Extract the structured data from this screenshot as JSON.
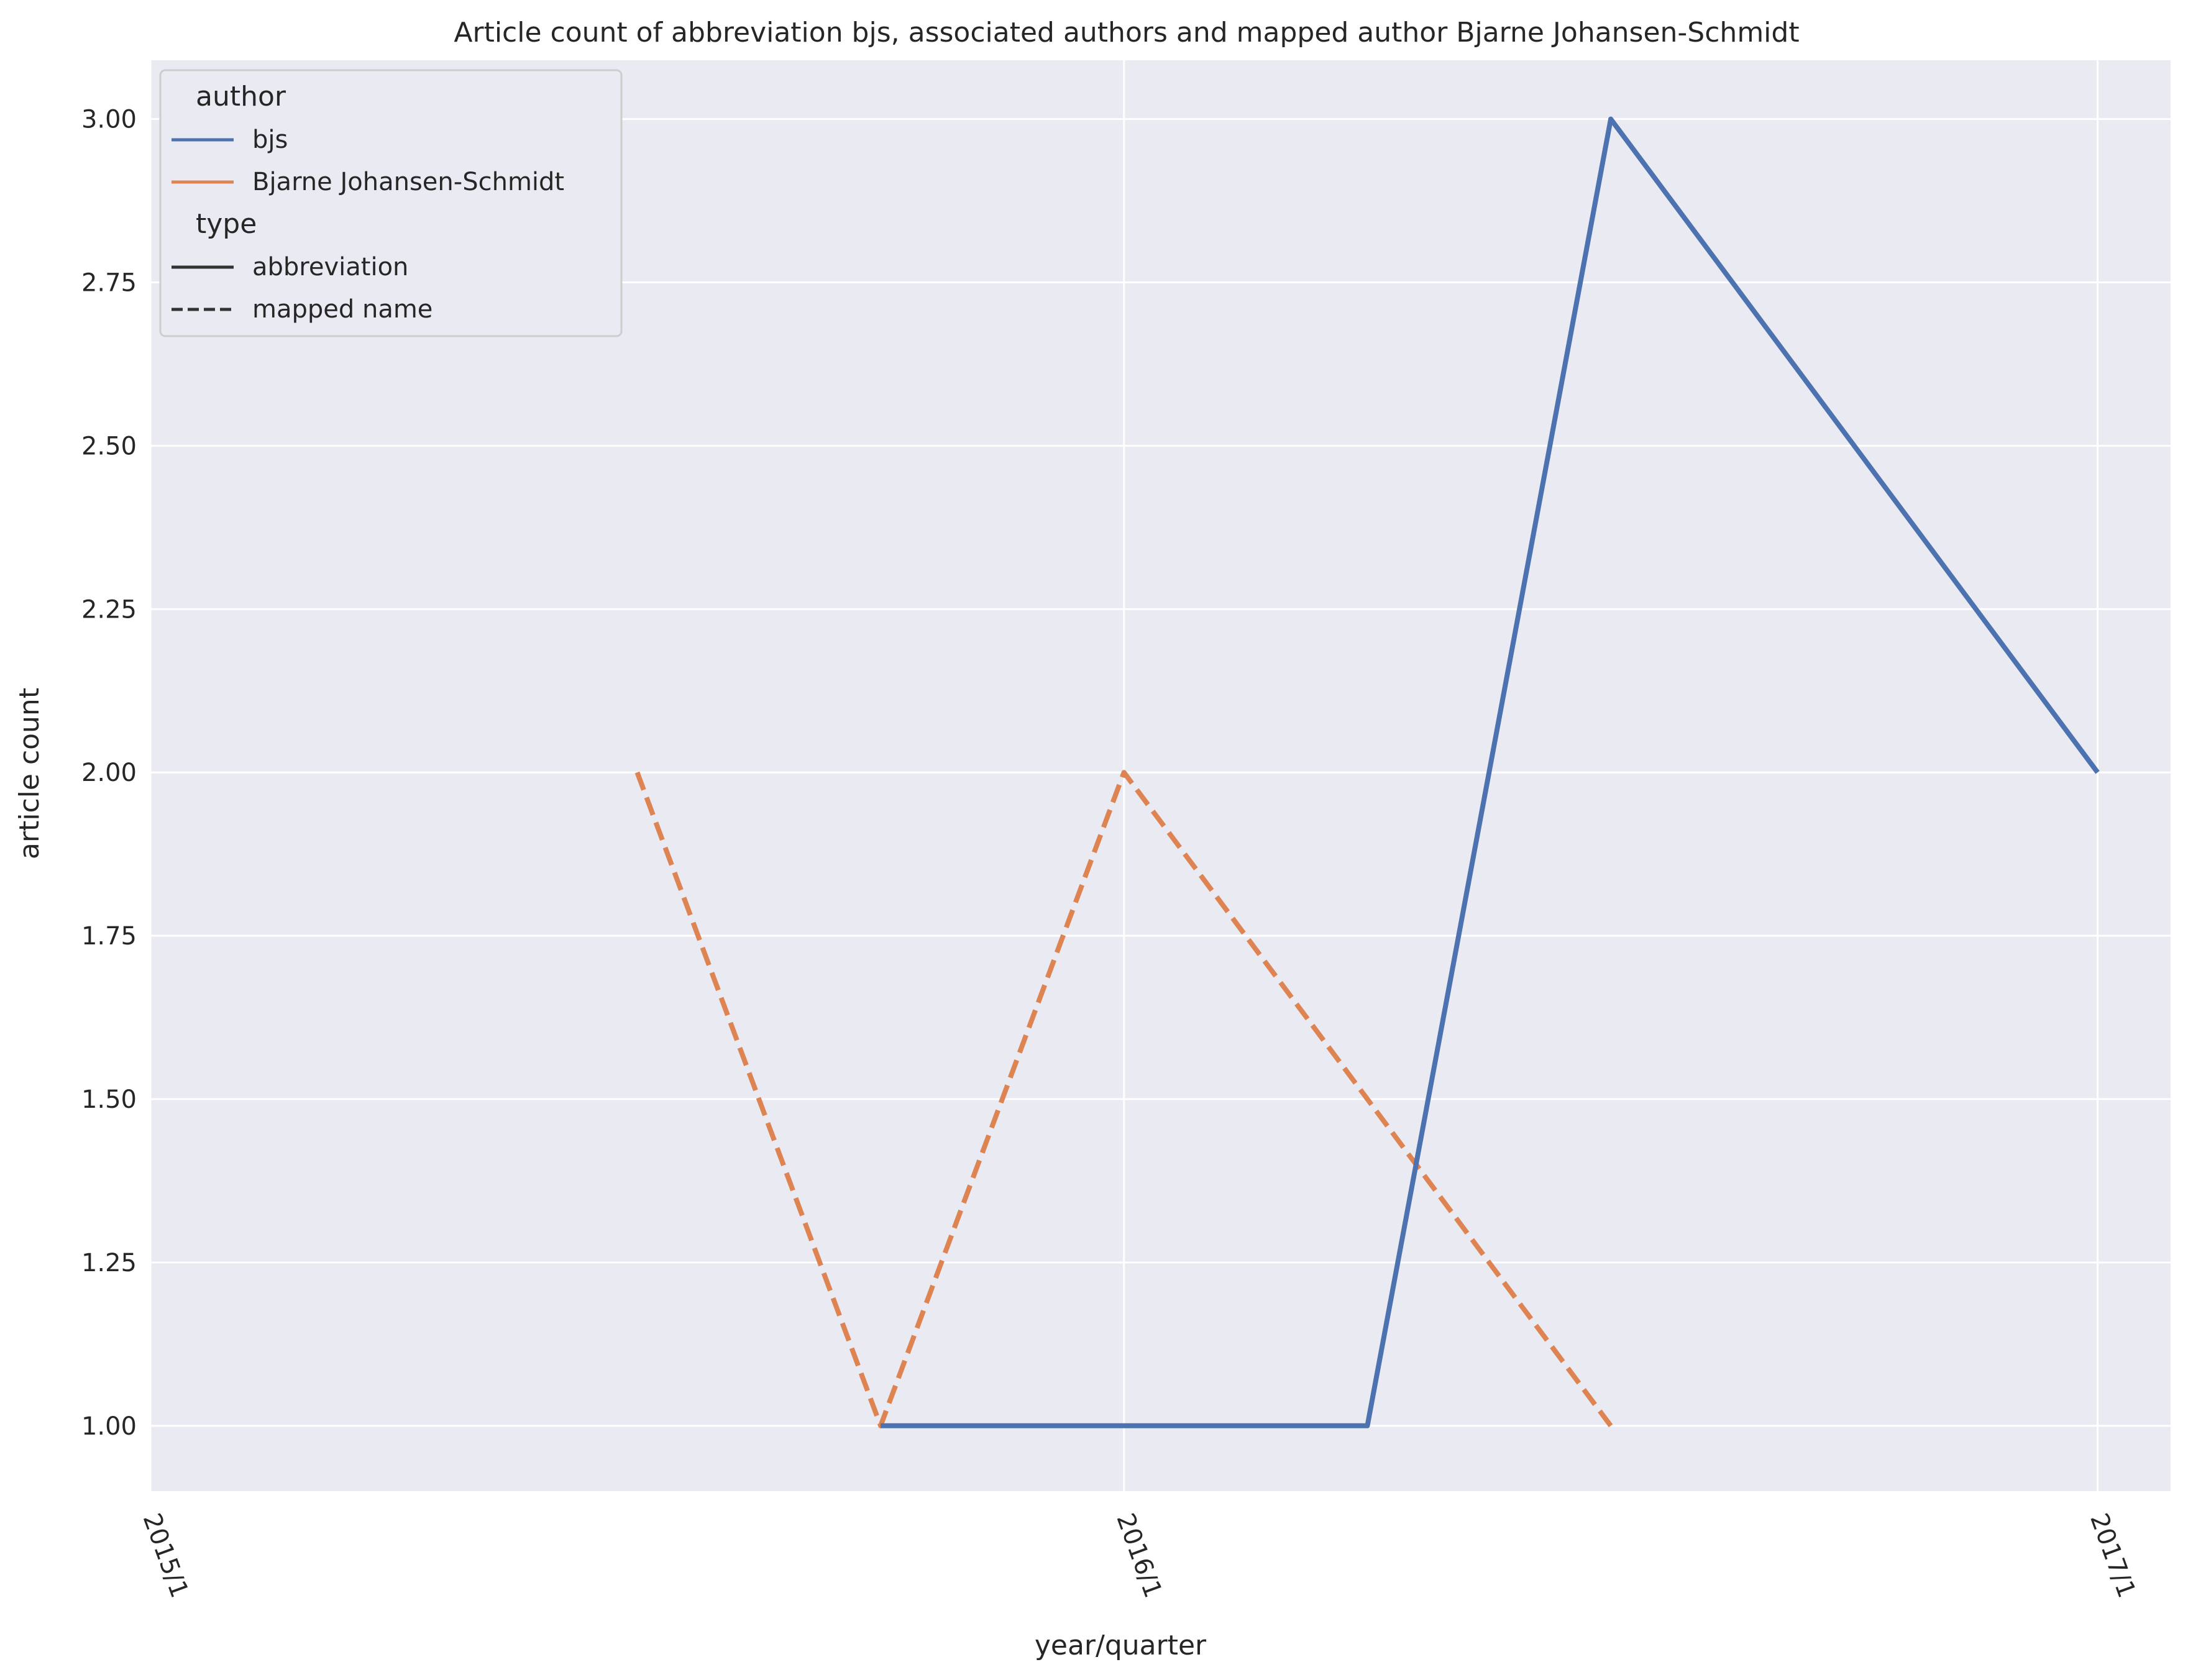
{
  "chart_data": {
    "type": "line",
    "title": "Article count of abbreviation bjs, associated authors and mapped author Bjarne Johansen-Schmidt",
    "xlabel": "year/quarter",
    "ylabel": "article count",
    "x_ticks": [
      "2015/1",
      "2016/1",
      "2017/1"
    ],
    "x_tick_positions": [
      0,
      4,
      8
    ],
    "ylim": [
      0.9,
      3.09
    ],
    "xlim": [
      0,
      8.3
    ],
    "y_ticks": [
      1.0,
      1.25,
      1.5,
      1.75,
      2.0,
      2.25,
      2.5,
      2.75,
      3.0
    ],
    "y_tick_labels": [
      "1.00",
      "1.25",
      "1.50",
      "1.75",
      "2.00",
      "2.25",
      "2.50",
      "2.75",
      "3.00"
    ],
    "grid": true,
    "legend_position": "top-left",
    "legend": {
      "title1": "author",
      "hue_entries": [
        {
          "label": "bjs",
          "color": "#4c72b0"
        },
        {
          "label": "Bjarne Johansen-Schmidt",
          "color": "#dd8452"
        }
      ],
      "title2": "type",
      "style_entries": [
        {
          "label": "abbreviation",
          "dashed": false
        },
        {
          "label": "mapped name",
          "dashed": true
        }
      ]
    },
    "series": [
      {
        "name": "bjs",
        "type": "abbreviation",
        "color": "#4c72b0",
        "dashed": false,
        "x": [
          3,
          4,
          5,
          6,
          8
        ],
        "values": [
          1.0,
          1.0,
          1.0,
          3.0,
          2.0
        ]
      },
      {
        "name": "Bjarne Johansen-Schmidt",
        "type": "mapped name",
        "color": "#dd8452",
        "dashed": true,
        "x": [
          2,
          3,
          4,
          5,
          6
        ],
        "values": [
          2.0,
          1.0,
          2.0,
          1.5,
          1.0
        ]
      }
    ]
  }
}
